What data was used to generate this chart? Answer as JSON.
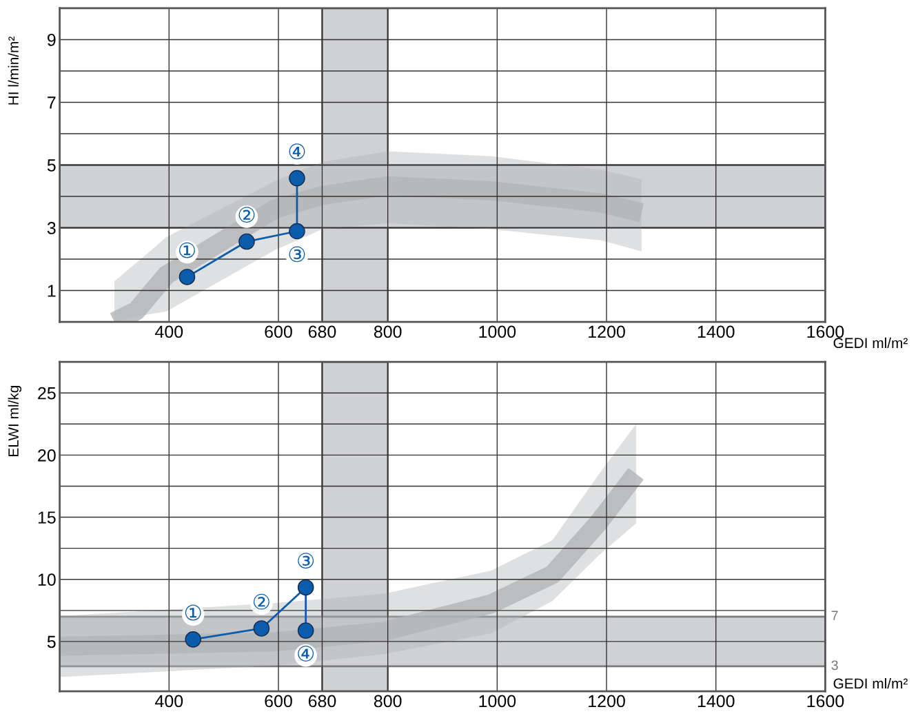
{
  "chart_data": [
    {
      "type": "line",
      "ylabel": "HI l/min/m²",
      "xlabel": "GEDI ml/m²",
      "xlim": [
        200,
        1600
      ],
      "xticks": [
        {
          "value": 200,
          "label": null
        },
        400,
        600,
        680,
        800,
        1000,
        1200,
        1400,
        1600
      ],
      "ylim": [
        0,
        10
      ],
      "yticks": [
        {
          "value": 0,
          "label": null
        },
        1,
        {
          "value": 2,
          "label": null
        },
        3,
        {
          "value": 4,
          "label": null
        },
        5,
        {
          "value": 6,
          "label": null
        },
        7,
        {
          "value": 8,
          "label": null
        },
        9,
        {
          "value": 10,
          "label": null
        }
      ],
      "grid": true,
      "bands": [
        {
          "axis": "x",
          "from": 680,
          "to": 800,
          "color": "#d0d1d4"
        },
        {
          "axis": "y",
          "from": 3,
          "to": 5,
          "color": "#d0d1d4"
        }
      ],
      "series": [
        {
          "type": "line",
          "color": "#b3b4b7",
          "x": [
            300,
            340,
            395,
            594,
            680,
            800,
            990,
            1190,
            1264
          ],
          "values": [
            0,
            0.35,
            1.49,
            3.6,
            4.03,
            4.34,
            4.18,
            3.79,
            3.48
          ],
          "lower": [
            0,
            0.17,
            0.33,
            2.29,
            2.95,
            3.15,
            2.95,
            2.6,
            2.25
          ],
          "upper": [
            1.29,
            1.88,
            2.7,
            4.49,
            5.1,
            5.44,
            5.28,
            4.85,
            4.55
          ]
        },
        {
          "type": "line",
          "color": "#0a5cad",
          "marker": "circle",
          "x": [
            433,
            542,
            634,
            634
          ],
          "values": [
            1.43,
            2.56,
            2.89,
            4.58
          ]
        }
      ],
      "annotations": [
        {
          "text": "①",
          "x": 433,
          "y": 1.43
        },
        {
          "text": "②",
          "x": 542,
          "y": 2.56
        },
        {
          "text": "③",
          "x": 634,
          "y": 2.89
        },
        {
          "text": "④",
          "x": 634,
          "y": 4.58
        }
      ]
    },
    {
      "type": "line",
      "ylabel": "ELWI ml/kg",
      "xlabel": "GEDI ml/m²",
      "xlim": [
        200,
        1600
      ],
      "xticks": [
        {
          "value": 200,
          "label": null
        },
        400,
        600,
        680,
        800,
        1000,
        1200,
        1400,
        1600
      ],
      "ylim": [
        1,
        27.5
      ],
      "yticks": [
        5,
        {
          "value": 7.5,
          "label": null
        },
        10,
        {
          "value": 12.5,
          "label": null
        },
        15,
        {
          "value": 17.5,
          "label": null
        },
        20,
        {
          "value": 22.5,
          "label": null
        },
        25,
        {
          "value": 27.5,
          "label": null
        }
      ],
      "grid": true,
      "bands": [
        {
          "axis": "x",
          "from": 680,
          "to": 800,
          "color": "#d0d1d4"
        },
        {
          "axis": "y",
          "from": 3,
          "to": 7,
          "color": "#d0d1d4"
        }
      ],
      "series": [
        {
          "type": "line",
          "color": "#b3b4b7",
          "x": [
            200,
            594,
            793,
            989,
            1101,
            1185,
            1254
          ],
          "values": [
            4.62,
            4.97,
            5.81,
            8.03,
            10.39,
            14.55,
            18.5
          ],
          "lower": [
            2.14,
            3.07,
            3.98,
            5.66,
            8.25,
            11.9,
            14.5
          ],
          "upper": [
            7.04,
            8.1,
            8.85,
            10.7,
            13.15,
            18.4,
            22.5
          ]
        },
        {
          "type": "line",
          "color": "#0a5cad",
          "marker": "circle",
          "x": [
            444,
            569,
            650,
            650
          ],
          "values": [
            5.17,
            6.05,
            9.35,
            5.88
          ]
        }
      ],
      "annotations": [
        {
          "text": "①",
          "x": 444,
          "y": 5.17
        },
        {
          "text": "②",
          "x": 569,
          "y": 6.05
        },
        {
          "text": "③",
          "x": 650,
          "y": 9.35
        },
        {
          "text": "④",
          "x": 650,
          "y": 5.88
        },
        {
          "text": "7",
          "x": 1600,
          "y": 7
        },
        {
          "text": "3",
          "x": 1600,
          "y": 3
        }
      ]
    }
  ]
}
